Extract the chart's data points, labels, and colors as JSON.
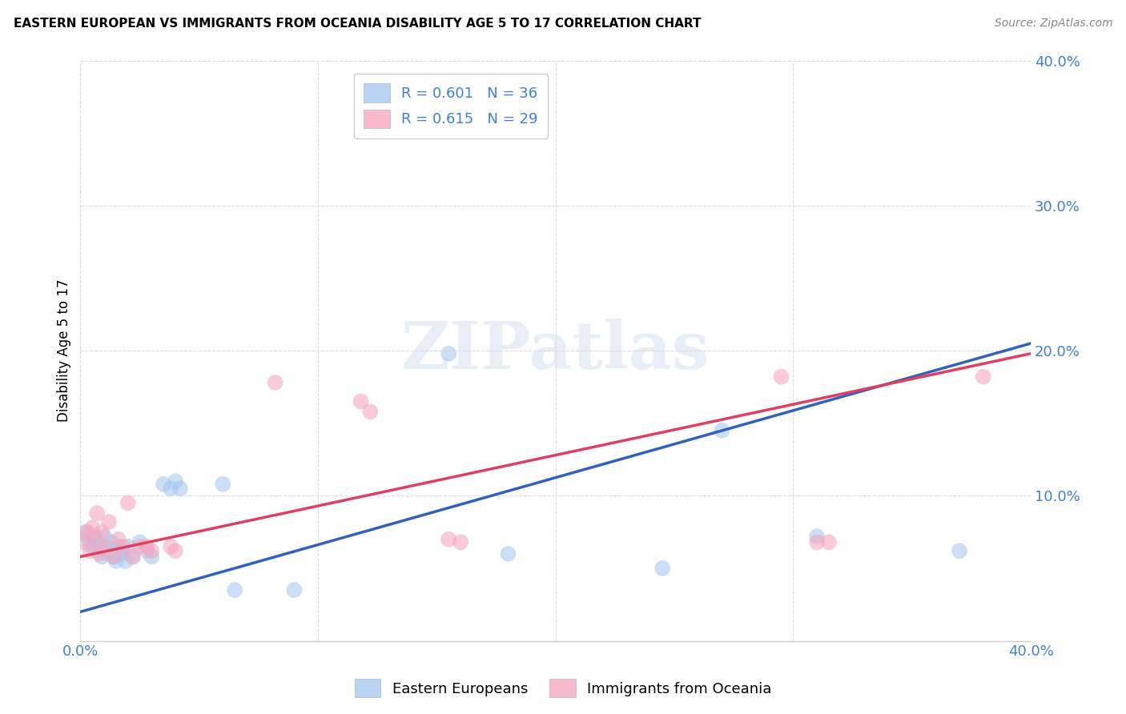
{
  "title": "EASTERN EUROPEAN VS IMMIGRANTS FROM OCEANIA DISABILITY AGE 5 TO 17 CORRELATION CHART",
  "source": "Source: ZipAtlas.com",
  "ylabel": "Disability Age 5 to 17",
  "xlim": [
    0.0,
    0.4
  ],
  "ylim": [
    0.0,
    0.4
  ],
  "xticks": [
    0.0,
    0.1,
    0.2,
    0.3,
    0.4
  ],
  "yticks": [
    0.0,
    0.1,
    0.2,
    0.3,
    0.4
  ],
  "xticklabels": [
    "0.0%",
    "",
    "",
    "",
    "40.0%"
  ],
  "yticklabels": [
    "",
    "10.0%",
    "20.0%",
    "30.0%",
    "40.0%"
  ],
  "blue_color": "#A8C8F0",
  "pink_color": "#F5A8C0",
  "blue_line_color": "#3060C0",
  "pink_line_color": "#E04060",
  "tick_color": "#4080D0",
  "legend_R1": "R = 0.601",
  "legend_N1": "N = 36",
  "legend_R2": "R = 0.615",
  "legend_N2": "N = 29",
  "watermark_text": "ZIPatlas",
  "blue_scatter": [
    [
      0.002,
      0.075
    ],
    [
      0.003,
      0.072
    ],
    [
      0.004,
      0.068
    ],
    [
      0.005,
      0.065
    ],
    [
      0.006,
      0.07
    ],
    [
      0.007,
      0.068
    ],
    [
      0.008,
      0.062
    ],
    [
      0.009,
      0.058
    ],
    [
      0.01,
      0.072
    ],
    [
      0.011,
      0.065
    ],
    [
      0.012,
      0.06
    ],
    [
      0.013,
      0.068
    ],
    [
      0.014,
      0.058
    ],
    [
      0.015,
      0.055
    ],
    [
      0.016,
      0.065
    ],
    [
      0.017,
      0.06
    ],
    [
      0.018,
      0.062
    ],
    [
      0.019,
      0.055
    ],
    [
      0.02,
      0.065
    ],
    [
      0.022,
      0.058
    ],
    [
      0.025,
      0.068
    ],
    [
      0.028,
      0.062
    ],
    [
      0.03,
      0.058
    ],
    [
      0.035,
      0.108
    ],
    [
      0.038,
      0.105
    ],
    [
      0.04,
      0.11
    ],
    [
      0.042,
      0.105
    ],
    [
      0.06,
      0.108
    ],
    [
      0.065,
      0.035
    ],
    [
      0.09,
      0.035
    ],
    [
      0.155,
      0.198
    ],
    [
      0.18,
      0.06
    ],
    [
      0.245,
      0.05
    ],
    [
      0.27,
      0.145
    ],
    [
      0.31,
      0.072
    ],
    [
      0.37,
      0.062
    ]
  ],
  "pink_scatter": [
    [
      0.002,
      0.068
    ],
    [
      0.003,
      0.075
    ],
    [
      0.004,
      0.062
    ],
    [
      0.005,
      0.078
    ],
    [
      0.006,
      0.072
    ],
    [
      0.007,
      0.088
    ],
    [
      0.008,
      0.06
    ],
    [
      0.009,
      0.075
    ],
    [
      0.01,
      0.065
    ],
    [
      0.012,
      0.082
    ],
    [
      0.014,
      0.058
    ],
    [
      0.016,
      0.07
    ],
    [
      0.018,
      0.065
    ],
    [
      0.02,
      0.095
    ],
    [
      0.022,
      0.058
    ],
    [
      0.025,
      0.065
    ],
    [
      0.028,
      0.065
    ],
    [
      0.03,
      0.062
    ],
    [
      0.038,
      0.065
    ],
    [
      0.04,
      0.062
    ],
    [
      0.082,
      0.178
    ],
    [
      0.118,
      0.165
    ],
    [
      0.122,
      0.158
    ],
    [
      0.155,
      0.07
    ],
    [
      0.16,
      0.068
    ],
    [
      0.295,
      0.182
    ],
    [
      0.31,
      0.068
    ],
    [
      0.315,
      0.068
    ],
    [
      0.38,
      0.182
    ]
  ],
  "blue_line_x": [
    0.0,
    0.4
  ],
  "blue_line_y": [
    0.02,
    0.205
  ],
  "pink_line_x": [
    0.0,
    0.4
  ],
  "pink_line_y": [
    0.058,
    0.198
  ],
  "grid_color": "#DEDEDE",
  "background_color": "#FFFFFF"
}
